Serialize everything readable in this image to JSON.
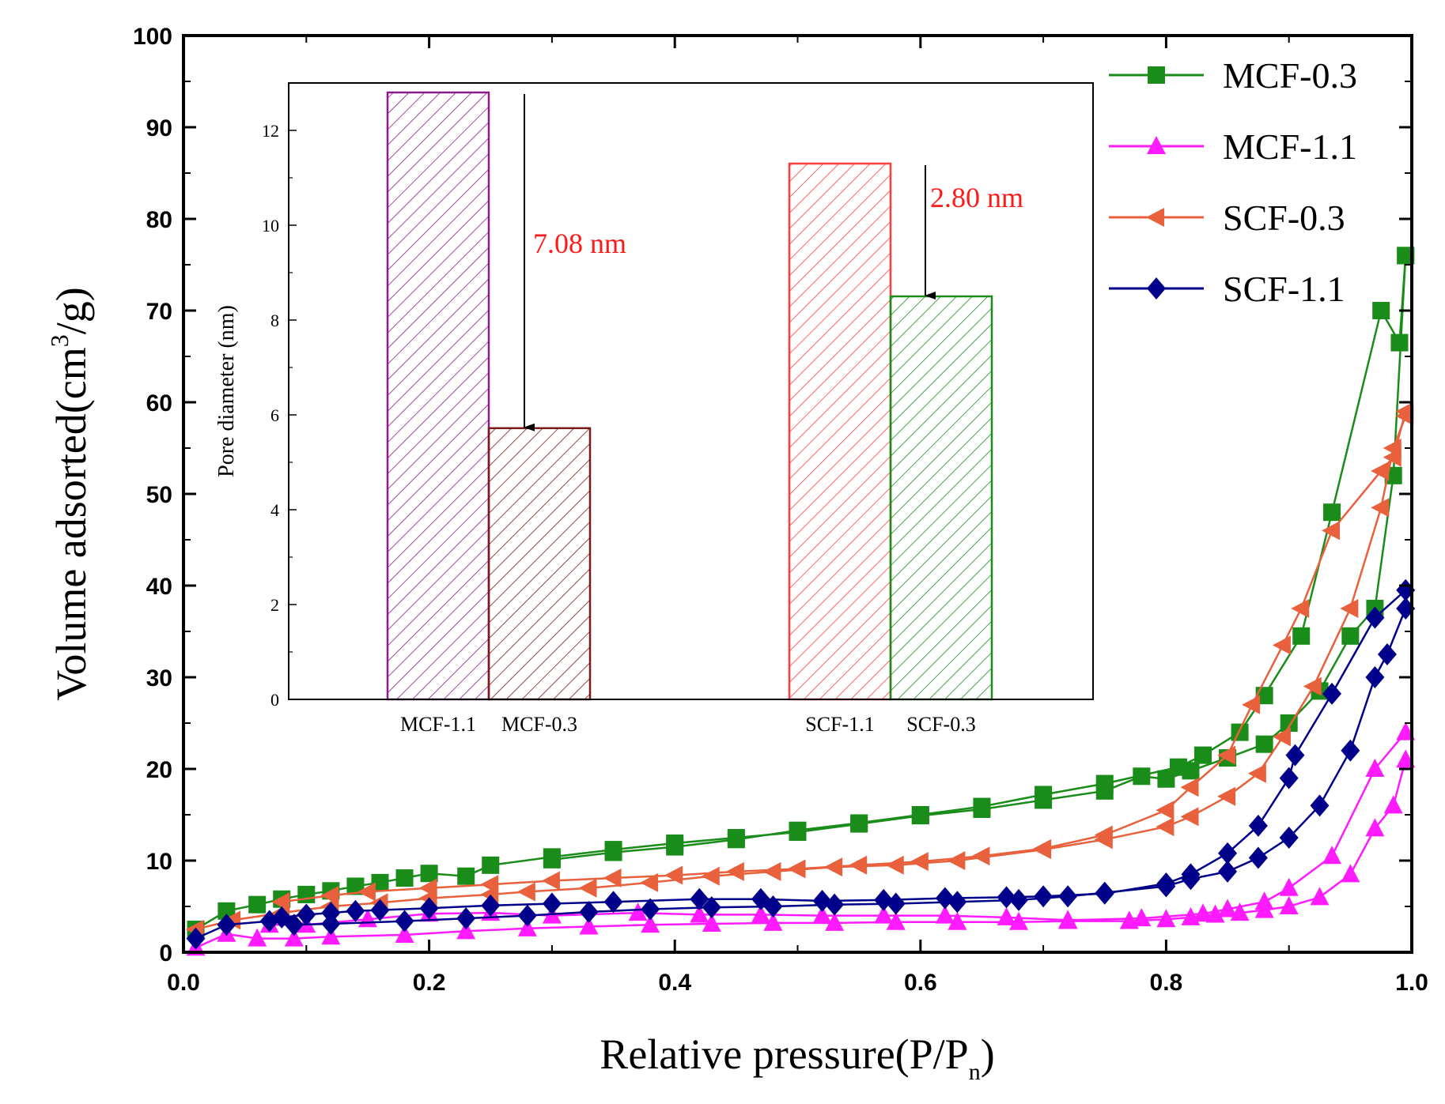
{
  "chart_data": [
    {
      "type": "line",
      "title": "",
      "xlabel": "Relative pressure(P/P",
      "xlabel_sub": "n",
      "xlabel_close": ")",
      "ylabel": "Volume adsorted(cm",
      "ylabel_sup": "3",
      "ylabel_close": "/g)",
      "xlim": [
        0.0,
        1.0
      ],
      "ylim": [
        0,
        100
      ],
      "xticks": [
        "0.0",
        "0.2",
        "0.4",
        "0.6",
        "0.8",
        "1.0"
      ],
      "yticks": [
        "0",
        "10",
        "20",
        "30",
        "40",
        "50",
        "60",
        "70",
        "80",
        "90",
        "100"
      ],
      "legend_position": "top-right",
      "series": [
        {
          "name": "MCF-0.3",
          "color": "#1a8c1a",
          "marker": "square",
          "adsorption": [
            [
              0.01,
              2.5
            ],
            [
              0.035,
              4.5
            ],
            [
              0.06,
              5.2
            ],
            [
              0.08,
              5.8
            ],
            [
              0.1,
              6.3
            ],
            [
              0.12,
              6.7
            ],
            [
              0.14,
              7.2
            ],
            [
              0.16,
              7.6
            ],
            [
              0.18,
              8.1
            ],
            [
              0.2,
              8.6
            ],
            [
              0.23,
              8.3
            ],
            [
              0.25,
              9.5
            ],
            [
              0.3,
              10.4
            ],
            [
              0.35,
              11.2
            ],
            [
              0.4,
              11.9
            ],
            [
              0.45,
              12.5
            ],
            [
              0.5,
              13.1
            ],
            [
              0.55,
              14.0
            ],
            [
              0.6,
              14.9
            ],
            [
              0.65,
              15.6
            ],
            [
              0.7,
              16.6
            ],
            [
              0.75,
              17.6
            ],
            [
              0.78,
              19.2
            ],
            [
              0.8,
              18.9
            ],
            [
              0.82,
              19.8
            ],
            [
              0.85,
              21.2
            ],
            [
              0.88,
              22.7
            ],
            [
              0.9,
              25.0
            ],
            [
              0.925,
              28.5
            ],
            [
              0.95,
              34.5
            ],
            [
              0.97,
              37.5
            ],
            [
              0.985,
              52.0
            ],
            [
              0.995,
              76.0
            ]
          ],
          "desorption": [
            [
              0.995,
              76.0
            ],
            [
              0.99,
              66.5
            ],
            [
              0.975,
              70.0
            ],
            [
              0.935,
              48.0
            ],
            [
              0.91,
              34.5
            ],
            [
              0.88,
              28.0
            ],
            [
              0.86,
              24.0
            ],
            [
              0.83,
              21.5
            ],
            [
              0.81,
              20.2
            ],
            [
              0.75,
              18.4
            ],
            [
              0.7,
              17.2
            ],
            [
              0.65,
              15.9
            ],
            [
              0.6,
              15.0
            ],
            [
              0.55,
              14.1
            ],
            [
              0.5,
              13.3
            ],
            [
              0.45,
              12.3
            ],
            [
              0.4,
              11.5
            ],
            [
              0.35,
              10.9
            ],
            [
              0.3,
              10.1
            ]
          ]
        },
        {
          "name": "MCF-1.1",
          "color": "#ff1aff",
          "marker": "triangle-up",
          "adsorption": [
            [
              0.01,
              0.5
            ],
            [
              0.035,
              2.0
            ],
            [
              0.06,
              1.5
            ],
            [
              0.09,
              1.5
            ],
            [
              0.12,
              1.7
            ],
            [
              0.18,
              1.9
            ],
            [
              0.23,
              2.3
            ],
            [
              0.28,
              2.6
            ],
            [
              0.33,
              2.8
            ],
            [
              0.38,
              3.0
            ],
            [
              0.43,
              3.1
            ],
            [
              0.48,
              3.2
            ],
            [
              0.53,
              3.2
            ],
            [
              0.58,
              3.3
            ],
            [
              0.63,
              3.3
            ],
            [
              0.68,
              3.3
            ],
            [
              0.72,
              3.4
            ],
            [
              0.77,
              3.4
            ],
            [
              0.8,
              3.6
            ],
            [
              0.82,
              3.8
            ],
            [
              0.84,
              4.1
            ],
            [
              0.86,
              4.3
            ],
            [
              0.88,
              4.6
            ],
            [
              0.9,
              5.0
            ],
            [
              0.925,
              6.0
            ],
            [
              0.95,
              8.5
            ],
            [
              0.97,
              13.5
            ],
            [
              0.985,
              16.0
            ],
            [
              0.995,
              21.0
            ]
          ],
          "desorption": [
            [
              0.995,
              24.0
            ],
            [
              0.97,
              20.0
            ],
            [
              0.935,
              10.5
            ],
            [
              0.9,
              7.0
            ],
            [
              0.88,
              5.5
            ],
            [
              0.85,
              4.7
            ],
            [
              0.83,
              4.2
            ],
            [
              0.78,
              3.7
            ],
            [
              0.72,
              3.5
            ],
            [
              0.67,
              3.8
            ],
            [
              0.62,
              4.0
            ],
            [
              0.57,
              4.0
            ],
            [
              0.52,
              4.0
            ],
            [
              0.47,
              4.1
            ],
            [
              0.42,
              4.1
            ],
            [
              0.37,
              4.3
            ],
            [
              0.3,
              4.0
            ],
            [
              0.25,
              4.3
            ],
            [
              0.2,
              4.2
            ],
            [
              0.15,
              3.6
            ],
            [
              0.1,
              3.0
            ],
            [
              0.07,
              3.0
            ]
          ]
        },
        {
          "name": "SCF-0.3",
          "color": "#e8603c",
          "marker": "triangle-left",
          "adsorption": [
            [
              0.01,
              2.5
            ],
            [
              0.04,
              3.5
            ],
            [
              0.08,
              4.3
            ],
            [
              0.12,
              5.0
            ],
            [
              0.16,
              5.4
            ],
            [
              0.2,
              5.9
            ],
            [
              0.25,
              6.3
            ],
            [
              0.28,
              6.6
            ],
            [
              0.33,
              7.0
            ],
            [
              0.38,
              7.6
            ],
            [
              0.43,
              8.3
            ],
            [
              0.48,
              8.8
            ],
            [
              0.53,
              9.3
            ],
            [
              0.58,
              9.5
            ],
            [
              0.63,
              10.0
            ],
            [
              0.7,
              11.2
            ],
            [
              0.75,
              12.3
            ],
            [
              0.8,
              13.7
            ],
            [
              0.82,
              14.8
            ],
            [
              0.85,
              17.0
            ],
            [
              0.875,
              19.5
            ],
            [
              0.895,
              23.5
            ],
            [
              0.92,
              29.0
            ],
            [
              0.95,
              37.5
            ],
            [
              0.975,
              48.5
            ],
            [
              0.985,
              55.0
            ],
            [
              0.995,
              58.5
            ]
          ],
          "desorption": [
            [
              0.995,
              59.0
            ],
            [
              0.985,
              54.0
            ],
            [
              0.975,
              52.5
            ],
            [
              0.935,
              46.0
            ],
            [
              0.91,
              37.5
            ],
            [
              0.895,
              33.5
            ],
            [
              0.87,
              27.0
            ],
            [
              0.85,
              21.5
            ],
            [
              0.82,
              18.0
            ],
            [
              0.8,
              15.5
            ],
            [
              0.75,
              12.8
            ],
            [
              0.7,
              11.3
            ],
            [
              0.65,
              10.5
            ],
            [
              0.6,
              9.9
            ],
            [
              0.55,
              9.5
            ],
            [
              0.5,
              9.1
            ],
            [
              0.45,
              8.8
            ],
            [
              0.4,
              8.4
            ],
            [
              0.35,
              8.1
            ],
            [
              0.3,
              7.8
            ],
            [
              0.25,
              7.4
            ],
            [
              0.2,
              7.0
            ],
            [
              0.15,
              6.6
            ],
            [
              0.12,
              6.2
            ],
            [
              0.08,
              5.5
            ]
          ]
        },
        {
          "name": "SCF-1.1",
          "color": "#00008b",
          "marker": "diamond",
          "adsorption": [
            [
              0.01,
              1.5
            ],
            [
              0.035,
              3.0
            ],
            [
              0.07,
              3.4
            ],
            [
              0.09,
              3.0
            ],
            [
              0.12,
              3.1
            ],
            [
              0.18,
              3.4
            ],
            [
              0.23,
              3.7
            ],
            [
              0.28,
              4.0
            ],
            [
              0.33,
              4.4
            ],
            [
              0.38,
              4.7
            ],
            [
              0.43,
              4.9
            ],
            [
              0.48,
              5.0
            ],
            [
              0.53,
              5.2
            ],
            [
              0.58,
              5.3
            ],
            [
              0.63,
              5.5
            ],
            [
              0.68,
              5.7
            ],
            [
              0.72,
              6.1
            ],
            [
              0.75,
              6.5
            ],
            [
              0.8,
              7.2
            ],
            [
              0.82,
              8.0
            ],
            [
              0.85,
              8.8
            ],
            [
              0.875,
              10.3
            ],
            [
              0.9,
              12.5
            ],
            [
              0.925,
              16.0
            ],
            [
              0.95,
              22.0
            ],
            [
              0.97,
              30.0
            ],
            [
              0.98,
              32.5
            ],
            [
              0.995,
              37.5
            ]
          ],
          "desorption": [
            [
              0.995,
              39.5
            ],
            [
              0.97,
              36.5
            ],
            [
              0.935,
              28.2
            ],
            [
              0.905,
              21.5
            ],
            [
              0.9,
              19.0
            ],
            [
              0.875,
              13.8
            ],
            [
              0.85,
              10.8
            ],
            [
              0.82,
              8.5
            ],
            [
              0.8,
              7.5
            ],
            [
              0.75,
              6.4
            ],
            [
              0.7,
              6.1
            ],
            [
              0.67,
              6.0
            ],
            [
              0.62,
              5.9
            ],
            [
              0.57,
              5.7
            ],
            [
              0.52,
              5.6
            ],
            [
              0.47,
              5.8
            ],
            [
              0.42,
              5.8
            ],
            [
              0.35,
              5.5
            ],
            [
              0.3,
              5.3
            ],
            [
              0.25,
              5.1
            ],
            [
              0.2,
              4.8
            ],
            [
              0.16,
              4.6
            ],
            [
              0.14,
              4.5
            ],
            [
              0.12,
              4.3
            ],
            [
              0.1,
              4.1
            ],
            [
              0.08,
              3.8
            ]
          ]
        }
      ]
    },
    {
      "type": "bar",
      "title": "",
      "ylabel": "Pore diameter (nm)",
      "ylim": [
        0,
        13
      ],
      "yticks": [
        "0",
        "2",
        "4",
        "6",
        "8",
        "10",
        "12"
      ],
      "categories": [
        "MCF-1.1",
        "MCF-0.3",
        "SCF-1.1",
        "SCF-0.3"
      ],
      "values": [
        12.8,
        5.72,
        11.3,
        8.5
      ],
      "colors": [
        "#8b1a8b",
        "#7a1a1a",
        "#ff3b3b",
        "#1a8c1a"
      ],
      "annotations": [
        {
          "text": "7.08 nm",
          "color": "#ff1a1a"
        },
        {
          "text": "2.80 nm",
          "color": "#ff1a1a"
        }
      ]
    }
  ]
}
